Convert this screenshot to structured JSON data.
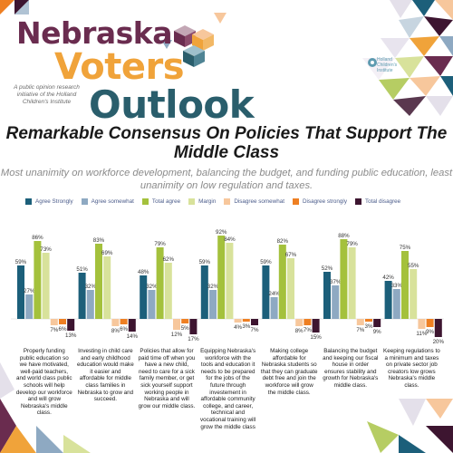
{
  "brand": {
    "line1": "Nebraska",
    "line2": "Voters’",
    "line3": "Outlook",
    "tagline": "A public opinion research initiative of the Holland Children's Institute",
    "institute_name": "Holland Children's Institute"
  },
  "colors": {
    "agree_strongly": "#1c5f7a",
    "agree_somewhat": "#8ea9c2",
    "total_agree": "#a4c13c",
    "margin": "#d8e29b",
    "disagree_somewhat": "#f7c79c",
    "disagree_strongly": "#ee7f22",
    "total_disagree": "#3d1530",
    "plum": "#6a2c4f",
    "orange": "#f0a33a",
    "teal": "#2a5e6c"
  },
  "chart_data": {
    "type": "bar",
    "title": "Remarkable Consensus On Policies That Support The Middle Class",
    "subtitle": "Most unanimity on workforce development, balancing the budget, and funding public education, least unanimity on low regulation and taxes.",
    "legend_position": "top",
    "grid": false,
    "categories": [
      "Properly funding public education so we have motivated, well-paid teachers, and world class public schools will help develop our workforce and will grow Nebraska's middle class.",
      "Investing in child care and early childhood education would make it easier and affordable for middle class families in Nebraska to grow and succeed.",
      "Policies that allow for paid time off when you have a new child, need to care for a sick family member, or get sick yourself support working people in Nebraska and will grow our middle class.",
      "Equipping Nebraska's workforce with the tools and education it needs to be prepared for the jobs of the future through investement in affordable community college, and career, technical and vocational training will grow the middle class",
      "Making college affordable for Nebraska students so that they can graduate debt free and join the workforce will grow the middle class.",
      "Balancing the budget and keeping our fiscal house in order ensures stability and growth for Nebraska's middle class.",
      "Keeping regulations to a minimum and taxes on private sector job creators low grows Nebraska's middle class."
    ],
    "series": [
      {
        "name": "Agree Strongly",
        "key": "agree_strongly",
        "direction": "up",
        "values": [
          59,
          51,
          48,
          59,
          59,
          52,
          42
        ],
        "labels": [
          "59%",
          "51%",
          "48%",
          "59%",
          "59%",
          "52%",
          "42%"
        ]
      },
      {
        "name": "Agree somewhat",
        "key": "agree_somewhat",
        "direction": "up",
        "values": [
          27,
          32,
          32,
          32,
          24,
          37,
          33
        ],
        "labels": [
          "27%",
          "32%",
          "32%",
          "32%",
          "24%",
          "37%",
          "33%"
        ]
      },
      {
        "name": "Total agree",
        "key": "total_agree",
        "direction": "up",
        "values": [
          86,
          83,
          79,
          92,
          82,
          88,
          75
        ],
        "labels": [
          "86%",
          "83%",
          "79%",
          "92%",
          "82%",
          "88%",
          "75%"
        ]
      },
      {
        "name": "Margin",
        "key": "margin",
        "direction": "up",
        "values": [
          73,
          69,
          62,
          84,
          67,
          79,
          55
        ],
        "labels": [
          "73%",
          "69%",
          "62%",
          "84%",
          "67%",
          "79%",
          "55%"
        ]
      },
      {
        "name": "Disagree somewhat",
        "key": "disagree_somewhat",
        "direction": "down",
        "values": [
          7,
          8,
          12,
          4,
          8,
          7,
          11
        ],
        "labels": [
          "7%",
          "8%",
          "12%",
          "4%",
          "8%",
          "7%",
          "11%"
        ]
      },
      {
        "name": "Disagree strongly",
        "key": "disagree_strongly",
        "direction": "down",
        "values": [
          6,
          6,
          5,
          3,
          7,
          3,
          9
        ],
        "labels": [
          "6%",
          "6%",
          "5%",
          "3%",
          "7%",
          "3%",
          "9%"
        ]
      },
      {
        "name": "Total disagree",
        "key": "total_disagree",
        "direction": "down",
        "values": [
          13,
          14,
          17,
          7,
          15,
          9,
          20
        ],
        "labels": [
          "13%",
          "14%",
          "17%",
          "7%",
          "15%",
          "9%",
          "20%"
        ]
      }
    ]
  }
}
